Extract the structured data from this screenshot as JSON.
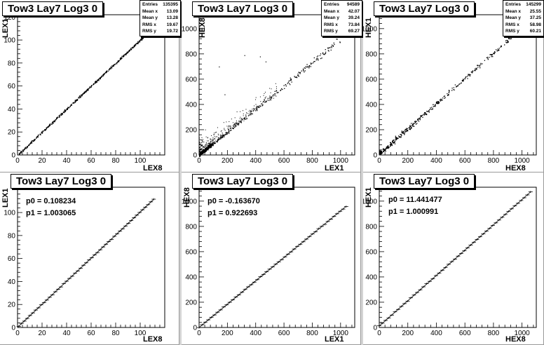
{
  "chart_data": [
    {
      "type": "scatter",
      "title": "Tow3 Lay7 Log3 0",
      "xlabel": "LEX8",
      "ylabel": "LEX1",
      "xlim": [
        0,
        120
      ],
      "ylim": [
        0,
        122
      ],
      "xticks": [
        0,
        20,
        40,
        60,
        80,
        100
      ],
      "yticks": [
        0,
        20,
        40,
        60,
        80,
        100,
        120
      ],
      "stats": [
        {
          "label": "Entries",
          "value": "135395"
        },
        {
          "label": "Mean x",
          "value": "13.09"
        },
        {
          "label": "Mean y",
          "value": "13.28"
        },
        {
          "label": "RMS x",
          "value": "19.67"
        },
        {
          "label": "RMS y",
          "value": "19.72"
        }
      ],
      "trend": {
        "x0": 1,
        "x1": 107,
        "slope": 1.003,
        "intercept": 0.1
      }
    },
    {
      "type": "scatter",
      "title": "Tow3 Lay7 Log3 0",
      "xlabel": "LEX1",
      "ylabel": "HEX8",
      "xlim": [
        0,
        1100
      ],
      "ylim": [
        0,
        1110
      ],
      "xticks": [
        0,
        200,
        400,
        600,
        800,
        1000
      ],
      "yticks": [
        0,
        200,
        400,
        600,
        800,
        1000
      ],
      "stats": [
        {
          "label": "Entries",
          "value": "94589"
        },
        {
          "label": "Mean x",
          "value": "42.07"
        },
        {
          "label": "Mean y",
          "value": "39.24"
        },
        {
          "label": "RMS x",
          "value": "73.84"
        },
        {
          "label": "RMS y",
          "value": "69.27"
        }
      ],
      "trend": {
        "x0": 0,
        "x1": 1000,
        "slope": 0.92,
        "intercept": -0.16
      }
    },
    {
      "type": "scatter",
      "title": "Tow3 Lay7 Log3 0",
      "xlabel": "HEX8",
      "ylabel": "HEX1",
      "xlim": [
        0,
        1100
      ],
      "ylim": [
        0,
        1110
      ],
      "xticks": [
        0,
        200,
        400,
        600,
        800,
        1000
      ],
      "yticks": [
        0,
        200,
        400,
        600,
        800,
        1000
      ],
      "stats": [
        {
          "label": "Entries",
          "value": "145299"
        },
        {
          "label": "Mean x",
          "value": "25.55"
        },
        {
          "label": "Mean y",
          "value": "37.25"
        },
        {
          "label": "RMS x",
          "value": "58.98"
        },
        {
          "label": "RMS y",
          "value": "60.21"
        }
      ],
      "trend": {
        "x0": 0,
        "x1": 930,
        "slope": 1.0,
        "intercept": 11.4
      }
    },
    {
      "type": "line",
      "title": "Tow3 Lay7 Log3 0",
      "xlabel": "LEX8",
      "ylabel": "LEX1",
      "xlim": [
        0,
        120
      ],
      "ylim": [
        0,
        122
      ],
      "xticks": [
        0,
        20,
        40,
        60,
        80,
        100
      ],
      "yticks": [
        0,
        20,
        40,
        60,
        80,
        100
      ],
      "fit": {
        "p0_label": "p0 = 0.108234",
        "p1_label": "p1 = 1.003065",
        "p0": 0.108234,
        "p1": 1.003065,
        "x0": 1,
        "x1": 111
      }
    },
    {
      "type": "line",
      "title": "Tow3 Lay7 Log3 0",
      "xlabel": "LEX1",
      "ylabel": "HEX8",
      "xlim": [
        0,
        1100
      ],
      "ylim": [
        0,
        1110
      ],
      "xticks": [
        0,
        200,
        400,
        600,
        800,
        1000
      ],
      "yticks": [
        0,
        200,
        400,
        600,
        800,
        1000
      ],
      "fit": {
        "p0_label": "p0 = -0.163670",
        "p1_label": "p1 = 0.922693",
        "p0": -0.16367,
        "p1": 0.922693,
        "x0": 0,
        "x1": 1040
      }
    },
    {
      "type": "line",
      "title": "Tow3 Lay7 Log3 0",
      "xlabel": "HEX8",
      "ylabel": "HEX1",
      "xlim": [
        0,
        1100
      ],
      "ylim": [
        0,
        1110
      ],
      "xticks": [
        0,
        200,
        400,
        600,
        800,
        1000
      ],
      "yticks": [
        0,
        200,
        400,
        600,
        800,
        1000
      ],
      "fit": {
        "p0_label": "p0 = 11.441477",
        "p1_label": "p1 = 1.000991",
        "p0": 11.441477,
        "p1": 1.000991,
        "x0": 0,
        "x1": 1060
      }
    }
  ]
}
